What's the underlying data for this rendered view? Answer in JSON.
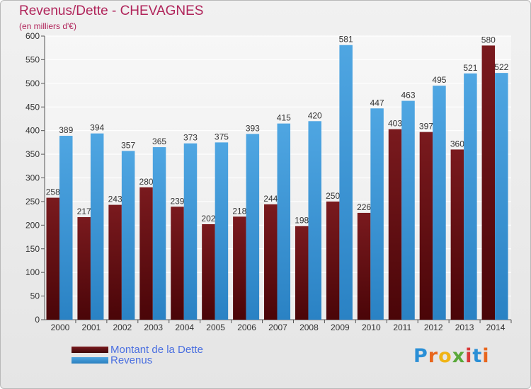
{
  "colors": {
    "dette": "#7a1a1e",
    "revenus": "#4fa6e2",
    "title": "#b0245a",
    "legend_text": "#4a6fe0"
  },
  "chart_data": {
    "type": "bar",
    "title": "Revenus/Dette - CHEVAGNES",
    "subtitle": "(en milliers d'€)",
    "categories": [
      "2000",
      "2001",
      "2002",
      "2003",
      "2004",
      "2005",
      "2006",
      "2007",
      "2008",
      "2009",
      "2010",
      "2011",
      "2012",
      "2013",
      "2014"
    ],
    "series": [
      {
        "name": "Montant de la Dette",
        "values": [
          258,
          217,
          243,
          280,
          239,
          202,
          218,
          244,
          198,
          250,
          226,
          403,
          397,
          360,
          580
        ]
      },
      {
        "name": "Revenus",
        "values": [
          389,
          394,
          357,
          365,
          373,
          375,
          393,
          415,
          420,
          581,
          447,
          463,
          495,
          521,
          522
        ]
      }
    ],
    "ylim": [
      0,
      600
    ],
    "yticks": [
      0,
      50,
      100,
      150,
      200,
      250,
      300,
      350,
      400,
      450,
      500,
      550,
      600
    ],
    "grid": true,
    "legend": "bottom-left"
  },
  "logo": {
    "letters": [
      "P",
      "r",
      "o",
      "x",
      "i",
      "t",
      "i"
    ]
  }
}
